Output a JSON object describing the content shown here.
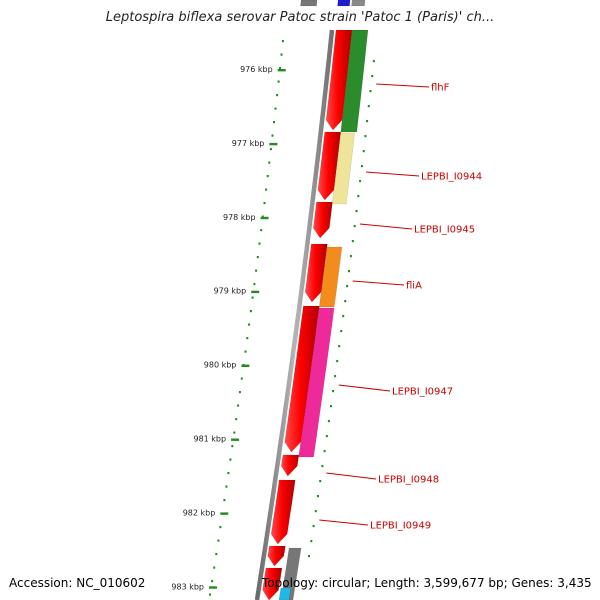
{
  "title": "Leptospira biflexa serovar Patoc strain 'Patoc 1 (Paris)' ch...",
  "footer": {
    "accession": "Accession: NC_010602",
    "topology": "Topology: circular; Length: 3,599,677 bp; Genes: 3,435"
  },
  "scale": [
    {
      "label": "976 kbp",
      "kbp": 976
    },
    {
      "label": "977 kbp",
      "kbp": 977
    },
    {
      "label": "978 kbp",
      "kbp": 978
    },
    {
      "label": "979 kbp",
      "kbp": 979
    },
    {
      "label": "980 kbp",
      "kbp": 980
    },
    {
      "label": "981 kbp",
      "kbp": 981
    },
    {
      "label": "982 kbp",
      "kbp": 982
    },
    {
      "label": "983 kbp",
      "kbp": 983
    }
  ],
  "gene_labels": [
    "flhF",
    "LEPBI_I0944",
    "LEPBI_I0945",
    "fliA",
    "LEPBI_I0947",
    "LEPBI_I0948",
    "LEPBI_I0949"
  ],
  "colors": {
    "backbone": "#8c8c8c",
    "cds": "#ee0000",
    "label_line": "#cc0000",
    "scale_tick": "#228b22",
    "flhF": "#2a8c2a",
    "LEPBI_I0944": "#efe59a",
    "fliA": "#f28c1c",
    "LEPBI_I0947": "#ee2a9a",
    "top_blue": "#1e1ecf",
    "bottom_gray": "#777777",
    "bottom_cyan": "#22b8e6"
  }
}
